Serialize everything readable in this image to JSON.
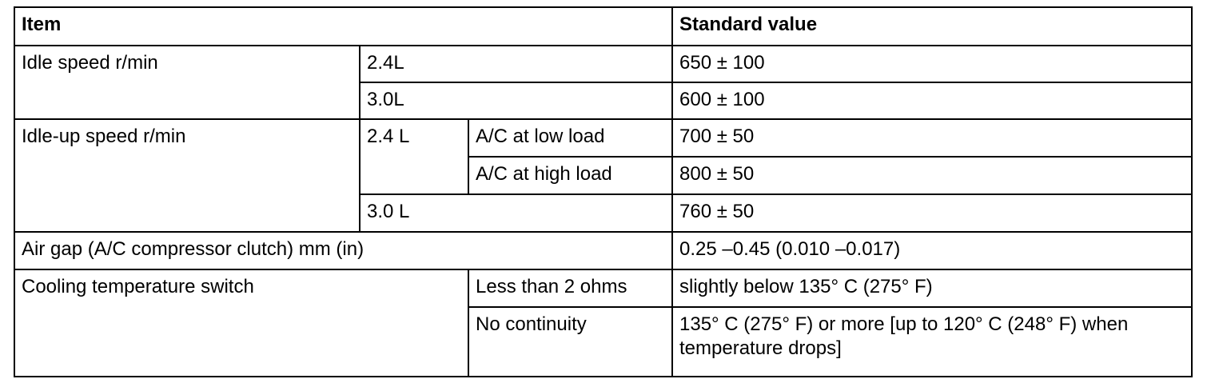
{
  "table": {
    "header": [
      "Item",
      "Standard value"
    ],
    "rows": [
      [
        "Idle speed r/min",
        "2.4L",
        "650 ± 100"
      ],
      [
        "3.0L",
        "600 ± 100"
      ],
      [
        "Idle-up speed r/min",
        "2.4 L",
        "A/C at low load",
        "700 ± 50"
      ],
      [
        "A/C at high load",
        "800 ± 50"
      ],
      [
        "3.0 L",
        "760 ± 50"
      ],
      [
        "Air gap (A/C compressor clutch) mm (in)",
        "0.25 –0.45 (0.010 –0.017)"
      ],
      [
        "Cooling temperature switch",
        "Less than 2 ohms",
        "slightly below 135° C (275° F)"
      ],
      [
        "No continuity",
        "135° C (275° F) or more [up to 120° C (248° F) when temperature drops]"
      ]
    ]
  }
}
